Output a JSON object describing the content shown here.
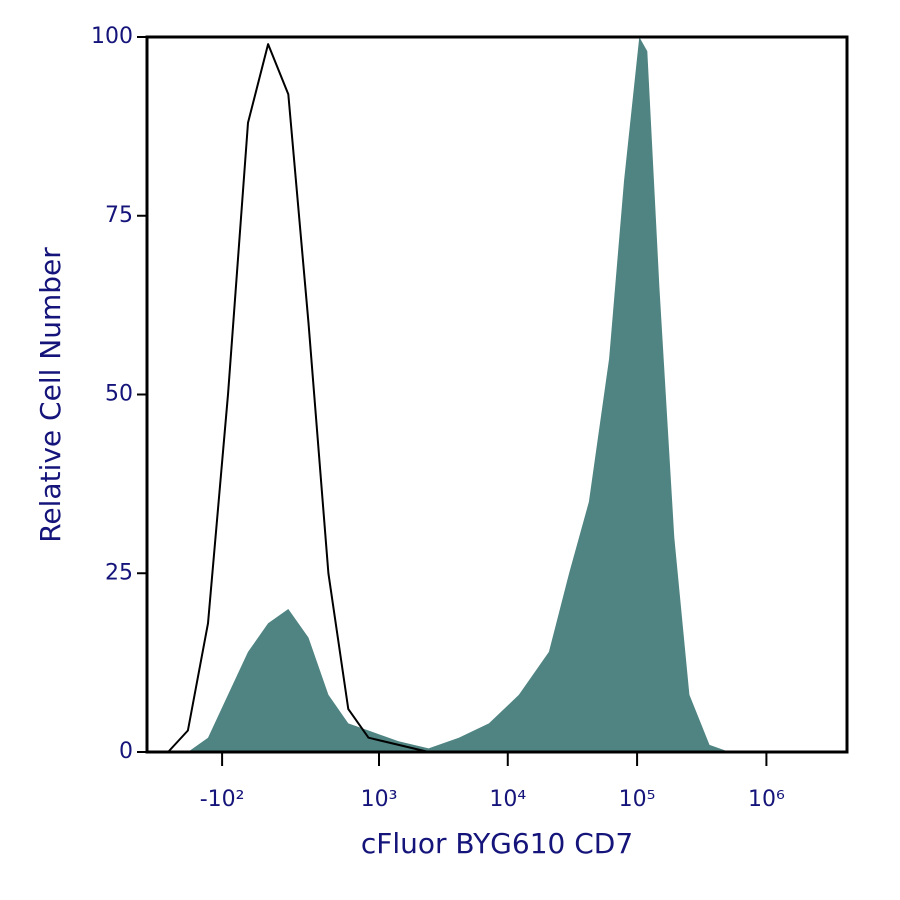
{
  "chart_data": {
    "type": "area",
    "xlabel": "cFluor BYG610 CD7",
    "ylabel": "Relative Cell Number",
    "xscale": "asinh",
    "x": [
      -400,
      -264,
      -160,
      -77,
      -4,
      69,
      151,
      253,
      386,
      568,
      826,
      1424,
      2440,
      4180,
      7140,
      12200,
      20800,
      29800,
      42400,
      60800,
      79400,
      104000,
      120000,
      148800,
      194000,
      254000,
      363000,
      519000
    ],
    "series": [
      {
        "color": "#4f8482",
        "style": "fill",
        "values": [
          0,
          0,
          2,
          8,
          14,
          18,
          20,
          16,
          8,
          4,
          3,
          1.5,
          0.5,
          2,
          4,
          8,
          14,
          25,
          35,
          55,
          80,
          100,
          98,
          65,
          30,
          8,
          1,
          0
        ]
      },
      {
        "color": "#000000",
        "style": "line",
        "values": [
          0,
          3,
          18,
          50,
          88,
          99,
          92,
          60,
          25,
          6,
          2,
          1,
          0,
          null,
          null,
          null,
          null,
          null,
          null,
          null,
          null,
          null,
          null,
          null,
          null,
          null,
          null,
          null
        ]
      }
    ],
    "xlim": [
      -600,
      4200000
    ],
    "xticks": [
      {
        "value": -100,
        "label": "-10²"
      },
      {
        "value": 1000,
        "label": "10³"
      },
      {
        "value": 10000,
        "label": "10⁴"
      },
      {
        "value": 100000,
        "label": "10⁵"
      },
      {
        "value": 1000000,
        "label": "10⁶"
      }
    ],
    "ylim": [
      0,
      100
    ],
    "yticks": [
      0,
      25,
      50,
      75,
      100
    ]
  }
}
